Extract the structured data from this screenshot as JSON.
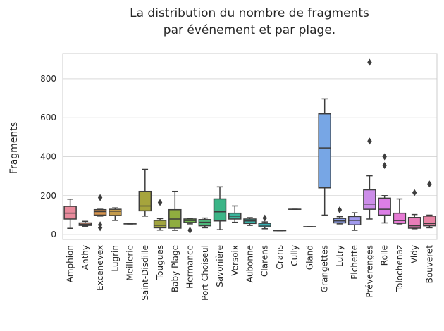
{
  "chart_data": {
    "type": "box",
    "title_lines": [
      "La distribution du nombre de fragments",
      "par événement et par plage."
    ],
    "xlabel": "",
    "ylabel": "Fragments",
    "ylim": [
      -25,
      930
    ],
    "yticks": [
      0,
      200,
      400,
      600,
      800
    ],
    "grid": true,
    "categories": [
      "Amphion",
      "Anthy",
      "Excenevex",
      "Lugrin",
      "Meillerie",
      "Saint-Disdille",
      "Tougues",
      "Baby Plage",
      "Hermance",
      "Port Choiseul",
      "Savonière",
      "Versoix",
      "Aubonne",
      "Clarens",
      "Crans",
      "Cully",
      "Gland",
      "Grangettes",
      "Lutry",
      "Pichette",
      "Préverenges",
      "Rolle",
      "Tolochenaz",
      "Vidy",
      "Bouveret"
    ],
    "colors": [
      "#e98a9c",
      "#e49577",
      "#d8944e",
      "#c49b4b",
      "#b4a24d",
      "#a6a43c",
      "#a1a43f",
      "#8fad3f",
      "#6fb54b",
      "#4eb67a",
      "#3bb587",
      "#3ab59b",
      "#3ab3a8",
      "#39b1b4",
      "#3ab2c2",
      "#3cb0d1",
      "#56a8e1",
      "#77a6e5",
      "#8fa0eb",
      "#a19aee",
      "#cc8de9",
      "#dc7ee6",
      "#e67ad4",
      "#e87db9",
      "#e884a5"
    ],
    "boxes": [
      {
        "min": 32,
        "q1": 80,
        "median": 110,
        "q3": 145,
        "max": 182,
        "outliers": []
      },
      {
        "min": 43,
        "q1": 47,
        "median": 53,
        "q3": 60,
        "max": 68,
        "outliers": []
      },
      {
        "min": 95,
        "q1": 100,
        "median": 118,
        "q3": 128,
        "max": 130,
        "outliers": [
          190,
          50,
          35
        ]
      },
      {
        "min": 73,
        "q1": 98,
        "median": 120,
        "q3": 130,
        "max": 137,
        "outliers": []
      },
      {
        "min": 55,
        "q1": 55,
        "median": 55,
        "q3": 55,
        "max": 55,
        "outliers": []
      },
      {
        "min": 95,
        "q1": 122,
        "median": 147,
        "q3": 222,
        "max": 335,
        "outliers": []
      },
      {
        "min": 23,
        "q1": 35,
        "median": 48,
        "q3": 73,
        "max": 82,
        "outliers": [
          165
        ]
      },
      {
        "min": 22,
        "q1": 33,
        "median": 80,
        "q3": 128,
        "max": 222,
        "outliers": []
      },
      {
        "min": 55,
        "q1": 62,
        "median": 72,
        "q3": 80,
        "max": 83,
        "outliers": [
          22
        ]
      },
      {
        "min": 35,
        "q1": 45,
        "median": 63,
        "q3": 77,
        "max": 85,
        "outliers": []
      },
      {
        "min": 25,
        "q1": 70,
        "median": 117,
        "q3": 183,
        "max": 245,
        "outliers": []
      },
      {
        "min": 63,
        "q1": 80,
        "median": 95,
        "q3": 110,
        "max": 147,
        "outliers": []
      },
      {
        "min": 47,
        "q1": 57,
        "median": 70,
        "q3": 80,
        "max": 87,
        "outliers": []
      },
      {
        "min": 30,
        "q1": 40,
        "median": 48,
        "q3": 58,
        "max": 65,
        "outliers": [
          85
        ]
      },
      {
        "min": 20,
        "q1": 20,
        "median": 20,
        "q3": 20,
        "max": 20,
        "outliers": []
      },
      {
        "min": 130,
        "q1": 130,
        "median": 130,
        "q3": 130,
        "max": 130,
        "outliers": []
      },
      {
        "min": 40,
        "q1": 40,
        "median": 40,
        "q3": 40,
        "max": 40,
        "outliers": []
      },
      {
        "min": 100,
        "q1": 240,
        "median": 445,
        "q3": 620,
        "max": 697,
        "outliers": []
      },
      {
        "min": 55,
        "q1": 60,
        "median": 70,
        "q3": 83,
        "max": 92,
        "outliers": [
          127
        ]
      },
      {
        "min": 22,
        "q1": 50,
        "median": 73,
        "q3": 93,
        "max": 112,
        "outliers": []
      },
      {
        "min": 80,
        "q1": 130,
        "median": 157,
        "q3": 230,
        "max": 302,
        "outliers": [
          480,
          885
        ]
      },
      {
        "min": 60,
        "q1": 100,
        "median": 130,
        "q3": 187,
        "max": 200,
        "outliers": [
          355,
          400
        ]
      },
      {
        "min": 55,
        "q1": 58,
        "median": 72,
        "q3": 110,
        "max": 183,
        "outliers": []
      },
      {
        "min": 30,
        "q1": 33,
        "median": 45,
        "q3": 88,
        "max": 103,
        "outliers": [
          215
        ]
      },
      {
        "min": 35,
        "q1": 45,
        "median": 57,
        "q3": 95,
        "max": 100,
        "outliers": [
          260
        ]
      }
    ]
  }
}
